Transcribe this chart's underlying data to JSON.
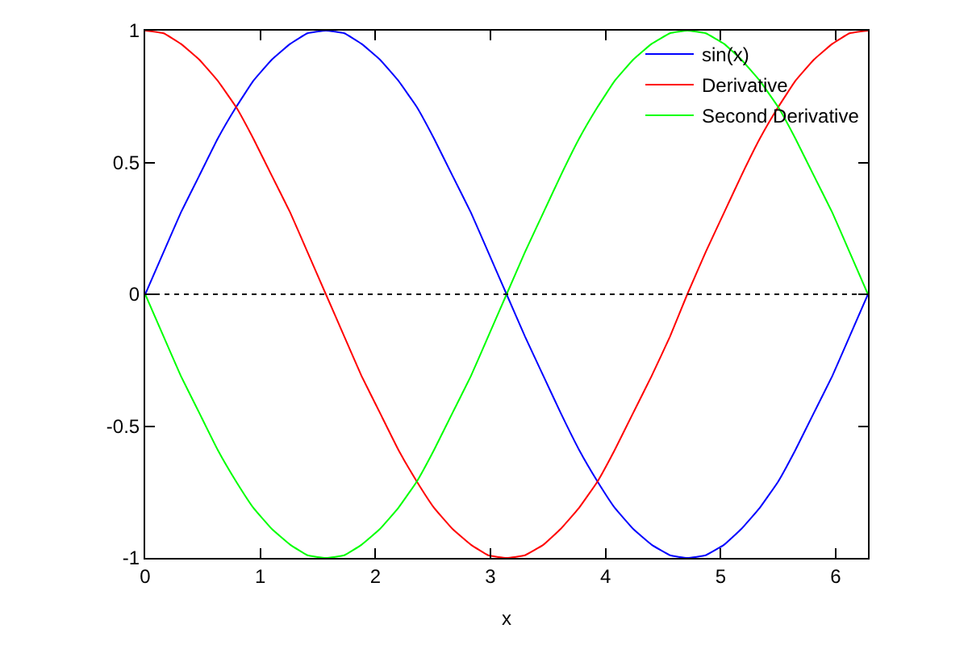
{
  "chart_data": {
    "type": "line",
    "xlabel": "x",
    "x": [
      0,
      0.16,
      0.31,
      0.47,
      0.63,
      0.79,
      0.94,
      1.1,
      1.26,
      1.41,
      1.57,
      1.73,
      1.88,
      2.04,
      2.2,
      2.36,
      2.51,
      2.67,
      2.83,
      2.98,
      3.14,
      3.3,
      3.46,
      3.61,
      3.77,
      3.93,
      4.08,
      4.24,
      4.4,
      4.56,
      4.71,
      4.87,
      5.03,
      5.18,
      5.34,
      5.5,
      5.65,
      5.81,
      5.97,
      6.12,
      6.28
    ],
    "series": [
      {
        "name": "sin(x)",
        "color": "#0000ff",
        "values": [
          0,
          0.16,
          0.31,
          0.45,
          0.59,
          0.71,
          0.81,
          0.89,
          0.95,
          0.99,
          1,
          0.99,
          0.95,
          0.89,
          0.81,
          0.71,
          0.59,
          0.45,
          0.31,
          0.16,
          0,
          -0.16,
          -0.31,
          -0.45,
          -0.59,
          -0.71,
          -0.81,
          -0.89,
          -0.95,
          -0.99,
          -1,
          -0.99,
          -0.95,
          -0.89,
          -0.81,
          -0.71,
          -0.59,
          -0.45,
          -0.31,
          -0.16,
          0
        ]
      },
      {
        "name": "Derivative",
        "color": "#ff0000",
        "values": [
          1,
          0.99,
          0.95,
          0.89,
          0.81,
          0.71,
          0.59,
          0.45,
          0.31,
          0.16,
          0,
          -0.16,
          -0.31,
          -0.45,
          -0.59,
          -0.71,
          -0.81,
          -0.89,
          -0.95,
          -0.99,
          -1,
          -0.99,
          -0.95,
          -0.89,
          -0.81,
          -0.71,
          -0.59,
          -0.45,
          -0.31,
          -0.16,
          0,
          0.16,
          0.31,
          0.45,
          0.59,
          0.71,
          0.81,
          0.89,
          0.95,
          0.99,
          1
        ]
      },
      {
        "name": "Second Derivative",
        "color": "#00ff00",
        "values": [
          0,
          -0.16,
          -0.31,
          -0.45,
          -0.59,
          -0.71,
          -0.81,
          -0.89,
          -0.95,
          -0.99,
          -1,
          -0.99,
          -0.95,
          -0.89,
          -0.81,
          -0.71,
          -0.59,
          -0.45,
          -0.31,
          -0.16,
          0,
          0.16,
          0.31,
          0.45,
          0.59,
          0.71,
          0.81,
          0.89,
          0.95,
          0.99,
          1,
          0.99,
          0.95,
          0.89,
          0.81,
          0.71,
          0.59,
          0.45,
          0.31,
          0.16,
          0
        ]
      }
    ],
    "xlim": [
      0,
      6.28
    ],
    "xticks": [
      0,
      1,
      2,
      3,
      4,
      5,
      6
    ],
    "ylim": [
      -1,
      1
    ],
    "yticks": [
      -1,
      -0.5,
      0,
      0.5,
      1
    ],
    "ref_lines": [
      {
        "axis": "y",
        "value": 0,
        "color": "#000000",
        "line_style": "dotted"
      }
    ],
    "legend": "top right",
    "marker": "none",
    "line_style": "solid"
  }
}
